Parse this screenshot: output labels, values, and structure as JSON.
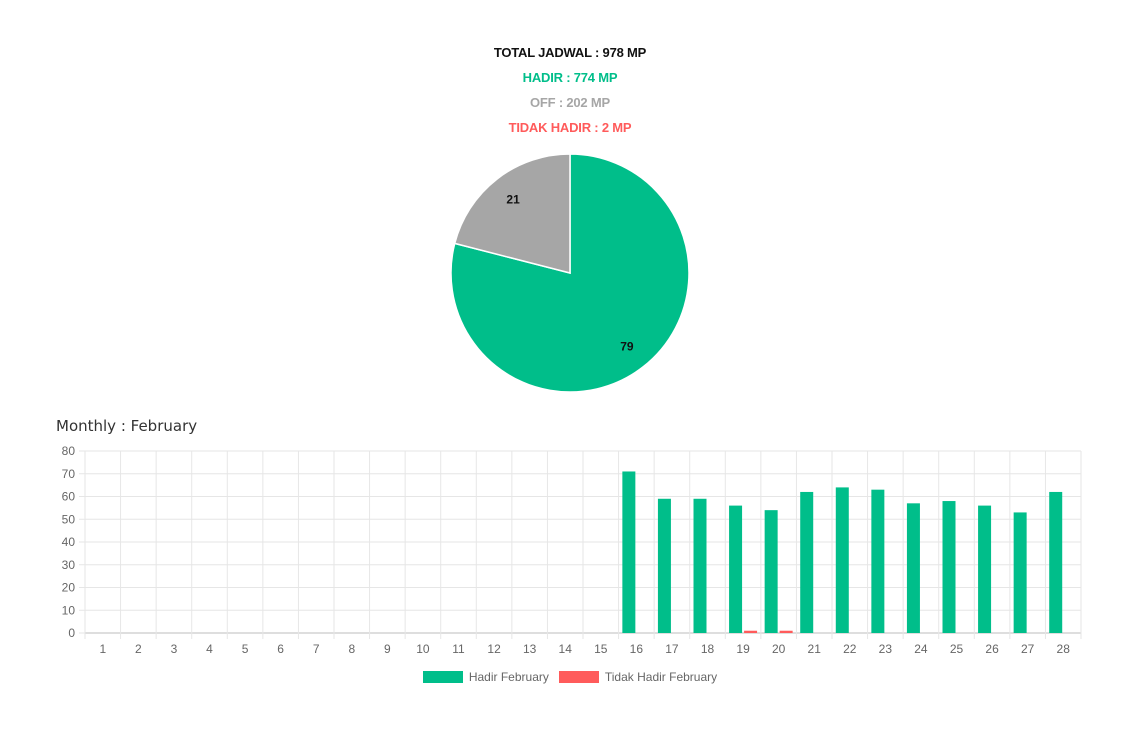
{
  "summary": {
    "total": "TOTAL JADWAL : 978 MP",
    "hadir": "HADIR : 774 MP",
    "off": "OFF : 202 MP",
    "tidak_hadir": "TIDAK HADIR : 2 MP"
  },
  "colors": {
    "hadir": "#00be8a",
    "off": "#a6a6a6",
    "tidak_hadir": "#ff5b5b"
  },
  "chart_data": [
    {
      "type": "pie",
      "title": "",
      "slices": [
        {
          "label": "Hadir",
          "value": 79,
          "color": "#00be8a"
        },
        {
          "label": "Off",
          "value": 21,
          "color": "#a6a6a6"
        }
      ]
    },
    {
      "type": "bar",
      "title": "Monthly : February",
      "xlabel": "",
      "ylabel": "",
      "ylim": [
        0,
        80
      ],
      "yticks": [
        0,
        10,
        20,
        30,
        40,
        50,
        60,
        70,
        80
      ],
      "grid": true,
      "legend": "bottom",
      "categories": [
        "1",
        "2",
        "3",
        "4",
        "5",
        "6",
        "7",
        "8",
        "9",
        "10",
        "11",
        "12",
        "13",
        "14",
        "15",
        "16",
        "17",
        "18",
        "19",
        "20",
        "21",
        "22",
        "23",
        "24",
        "25",
        "26",
        "27",
        "28"
      ],
      "series": [
        {
          "name": "Hadir February",
          "color": "#00be8a",
          "values": [
            0,
            0,
            0,
            0,
            0,
            0,
            0,
            0,
            0,
            0,
            0,
            0,
            0,
            0,
            0,
            71,
            59,
            59,
            56,
            54,
            62,
            64,
            63,
            57,
            58,
            56,
            53,
            62
          ]
        },
        {
          "name": "Tidak Hadir February",
          "color": "#ff5b5b",
          "values": [
            0,
            0,
            0,
            0,
            0,
            0,
            0,
            0,
            0,
            0,
            0,
            0,
            0,
            0,
            0,
            0,
            0,
            0,
            1,
            1,
            0,
            0,
            0,
            0,
            0,
            0,
            0,
            0
          ]
        }
      ]
    }
  ]
}
